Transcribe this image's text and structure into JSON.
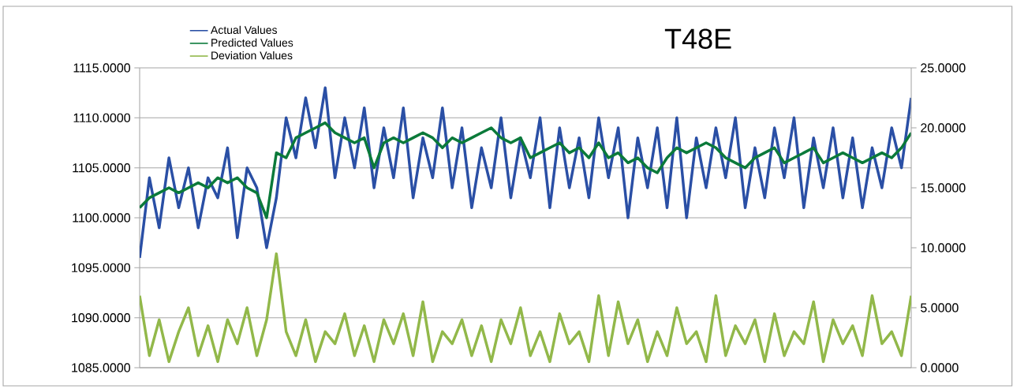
{
  "chart_data": {
    "type": "line",
    "title": "T48E",
    "categories": [
      null,
      null,
      null,
      null,
      null,
      null,
      null,
      null,
      null,
      null,
      null,
      null,
      null,
      null,
      null,
      null,
      null,
      null,
      null,
      null,
      null,
      null,
      null,
      null,
      null,
      null,
      null,
      null,
      null,
      null,
      null,
      null,
      null,
      null,
      null,
      null,
      null,
      null,
      null,
      null,
      null,
      null,
      null,
      null,
      null,
      null,
      null,
      null,
      null,
      null,
      null,
      null,
      null,
      null,
      null,
      null,
      null,
      null,
      null,
      null,
      null,
      null,
      null,
      null,
      null,
      null,
      null,
      null,
      null,
      null,
      null,
      null,
      null,
      null,
      null,
      null,
      null,
      null,
      null,
      null
    ],
    "series": [
      {
        "name": "Actual Values",
        "color": "#2a4fa5",
        "values": [
          1096,
          1104,
          1099,
          1106,
          1101,
          1105,
          1099,
          1104,
          1102,
          1107,
          1098,
          1105,
          1103,
          1097,
          1102,
          1110,
          1106,
          1112,
          1107,
          1113,
          1104,
          1110,
          1105,
          1111,
          1103,
          1109,
          1104,
          1111,
          1102,
          1108,
          1104,
          1111,
          1103,
          1109,
          1101,
          1107,
          1103,
          1110,
          1102,
          1108,
          1104,
          1110,
          1101,
          1109,
          1103,
          1108,
          1102,
          1110,
          1104,
          1109,
          1100,
          1108,
          1103,
          1109,
          1101,
          1110,
          1100,
          1108,
          1103,
          1109,
          1104,
          1110,
          1101,
          1107,
          1102,
          1109,
          1104,
          1110,
          1101,
          1108,
          1103,
          1109,
          1102,
          1108,
          1101,
          1107,
          1103,
          1109,
          1105,
          1112
        ]
      },
      {
        "name": "Predicted Values",
        "color": "#0b7a3a",
        "values": [
          1101,
          1102,
          1102.5,
          1103,
          1102.5,
          1103,
          1103.5,
          1103,
          1104,
          1103.5,
          1104,
          1103,
          1102.5,
          1100,
          1106.5,
          1106,
          1108,
          1108.5,
          1109,
          1109.5,
          1108.5,
          1108,
          1107.5,
          1108,
          1105,
          1107.5,
          1108,
          1107.5,
          1108,
          1108.5,
          1108,
          1107,
          1108,
          1107.5,
          1108,
          1108.5,
          1109,
          1108,
          1107.5,
          1108,
          1106,
          1106.5,
          1107,
          1107.5,
          1106.5,
          1107,
          1106,
          1107.5,
          1106,
          1106.5,
          1105.5,
          1106,
          1105,
          1104.5,
          1106,
          1107,
          1106.5,
          1107,
          1107.5,
          1107,
          1106,
          1105.5,
          1105,
          1106,
          1106.5,
          1107,
          1105.5,
          1106,
          1106.5,
          1107,
          1105.5,
          1106,
          1106.5,
          1106,
          1105.5,
          1106,
          1106.5,
          1106,
          1107,
          1108.5
        ]
      },
      {
        "name": "Deviation Values",
        "color": "#92b84a",
        "axis": "y2",
        "values": [
          6,
          1,
          4,
          0.5,
          3,
          5,
          1,
          3.5,
          0.5,
          4,
          2,
          5,
          1,
          4,
          9.5,
          3,
          1,
          4,
          0.5,
          3,
          2,
          4.5,
          1,
          3.5,
          0.5,
          4,
          2,
          4.5,
          1,
          5.5,
          0.5,
          3,
          2,
          4,
          1,
          3.5,
          0.5,
          4,
          2,
          5,
          1,
          3,
          0.5,
          4.5,
          2,
          3,
          0.5,
          6,
          1,
          5.5,
          2,
          4,
          0.5,
          3,
          1,
          5,
          2,
          3,
          0.5,
          6,
          1,
          3.5,
          2,
          4,
          0.5,
          4.5,
          1,
          3,
          2,
          5.5,
          0.5,
          4,
          2,
          3.5,
          1,
          6,
          2,
          3,
          1,
          6
        ]
      }
    ],
    "ylim": [
      1085,
      1115
    ],
    "yticks": [
      {
        "value": 1085,
        "label": "1085.0000"
      },
      {
        "value": 1090,
        "label": "1090.0000"
      },
      {
        "value": 1095,
        "label": "1095.0000"
      },
      {
        "value": 1100,
        "label": "1100.0000"
      },
      {
        "value": 1105,
        "label": "1105.0000"
      },
      {
        "value": 1110,
        "label": "1110.0000"
      },
      {
        "value": 1115,
        "label": "1115.0000"
      }
    ],
    "y2lim": [
      0,
      25
    ],
    "y2ticks": [
      {
        "value": 0,
        "label": "0.0000"
      },
      {
        "value": 5,
        "label": "5.0000"
      },
      {
        "value": 10,
        "label": "10.0000"
      },
      {
        "value": 15,
        "label": "15.0000"
      },
      {
        "value": 20,
        "label": "20.0000"
      },
      {
        "value": 25,
        "label": "25.0000"
      }
    ],
    "grid": "y",
    "legend": "top left"
  }
}
